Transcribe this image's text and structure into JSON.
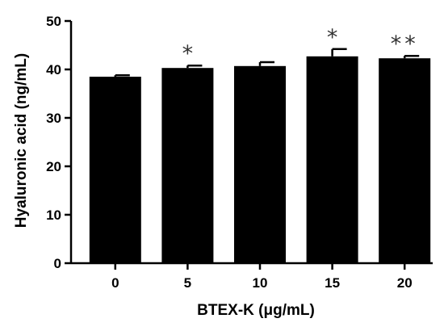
{
  "chart_data": {
    "type": "bar",
    "title": "",
    "xlabel": "BTEX-K (μg/mL)",
    "ylabel": "Hyaluronic acid (ng/mL)",
    "categories": [
      "0",
      "5",
      "10",
      "15",
      "20"
    ],
    "values": [
      38.5,
      40.3,
      40.7,
      42.7,
      42.3
    ],
    "errors": [
      0.3,
      0.5,
      0.8,
      1.5,
      0.5
    ],
    "significance": [
      "",
      "*",
      "",
      "*",
      "**"
    ],
    "ylim": [
      0,
      50
    ],
    "yticks": [
      0,
      10,
      20,
      30,
      40,
      50
    ],
    "grid": false,
    "bar_color": "#000000"
  }
}
